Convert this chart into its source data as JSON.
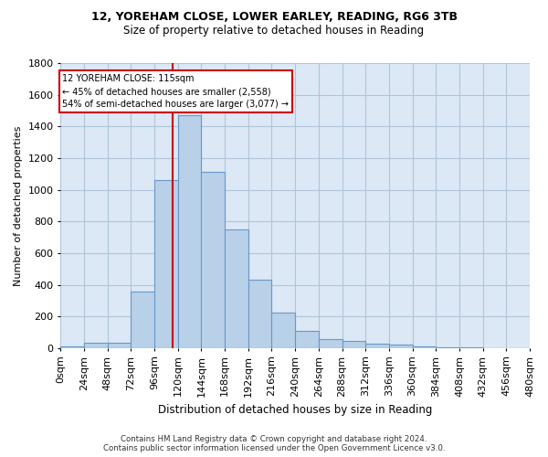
{
  "title_line1": "12, YOREHAM CLOSE, LOWER EARLEY, READING, RG6 3TB",
  "title_line2": "Size of property relative to detached houses in Reading",
  "xlabel": "Distribution of detached houses by size in Reading",
  "ylabel": "Number of detached properties",
  "footer_line1": "Contains HM Land Registry data © Crown copyright and database right 2024.",
  "footer_line2": "Contains public sector information licensed under the Open Government Licence v3.0.",
  "bar_values": [
    10,
    35,
    35,
    360,
    1060,
    1470,
    1115,
    750,
    435,
    225,
    110,
    55,
    45,
    30,
    20,
    10,
    5,
    3,
    2,
    1
  ],
  "bin_edges": [
    0,
    24,
    48,
    72,
    96,
    120,
    144,
    168,
    192,
    216,
    240,
    264,
    288,
    312,
    336,
    360,
    384,
    408,
    432,
    456,
    480
  ],
  "bar_color": "#b8d0e8",
  "bar_edge_color": "#6699cc",
  "property_size": 115,
  "vline_color": "#cc0000",
  "annotation_text_line1": "12 YOREHAM CLOSE: 115sqm",
  "annotation_text_line2": "← 45% of detached houses are smaller (2,558)",
  "annotation_text_line3": "54% of semi-detached houses are larger (3,077) →",
  "annotation_box_color": "#cc0000",
  "ylim": [
    0,
    1800
  ],
  "yticks": [
    0,
    200,
    400,
    600,
    800,
    1000,
    1200,
    1400,
    1600,
    1800
  ],
  "background_color": "#ffffff",
  "plot_bg_color": "#dce8f5",
  "grid_color": "#b0c4d8",
  "tick_labels": [
    "0sqm",
    "24sqm",
    "48sqm",
    "72sqm",
    "96sqm",
    "120sqm",
    "144sqm",
    "168sqm",
    "192sqm",
    "216sqm",
    "240sqm",
    "264sqm",
    "288sqm",
    "312sqm",
    "336sqm",
    "360sqm",
    "384sqm",
    "408sqm",
    "432sqm",
    "456sqm",
    "480sqm"
  ]
}
